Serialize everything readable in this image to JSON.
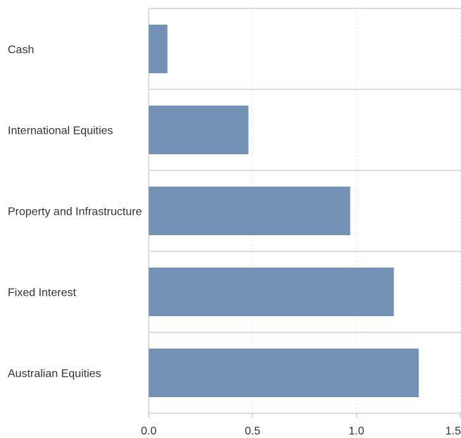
{
  "chart_data": {
    "type": "bar",
    "orientation": "horizontal",
    "categories": [
      "Cash",
      "International Equities",
      "Property and Infrastructure",
      "Fixed Interest",
      "Australian Equities"
    ],
    "values": [
      0.09,
      0.48,
      0.97,
      1.18,
      1.3
    ],
    "xlim": [
      0,
      1.5
    ],
    "xticks": [
      "0.0",
      "0.5",
      "1.0",
      "1.5"
    ],
    "title": "",
    "xlabel": "",
    "ylabel": "",
    "grid": "vertical dotted",
    "legend": "none",
    "colors": {
      "bar": "#7491b6",
      "grid": "#dddddd",
      "separator": "#dddddd"
    }
  }
}
